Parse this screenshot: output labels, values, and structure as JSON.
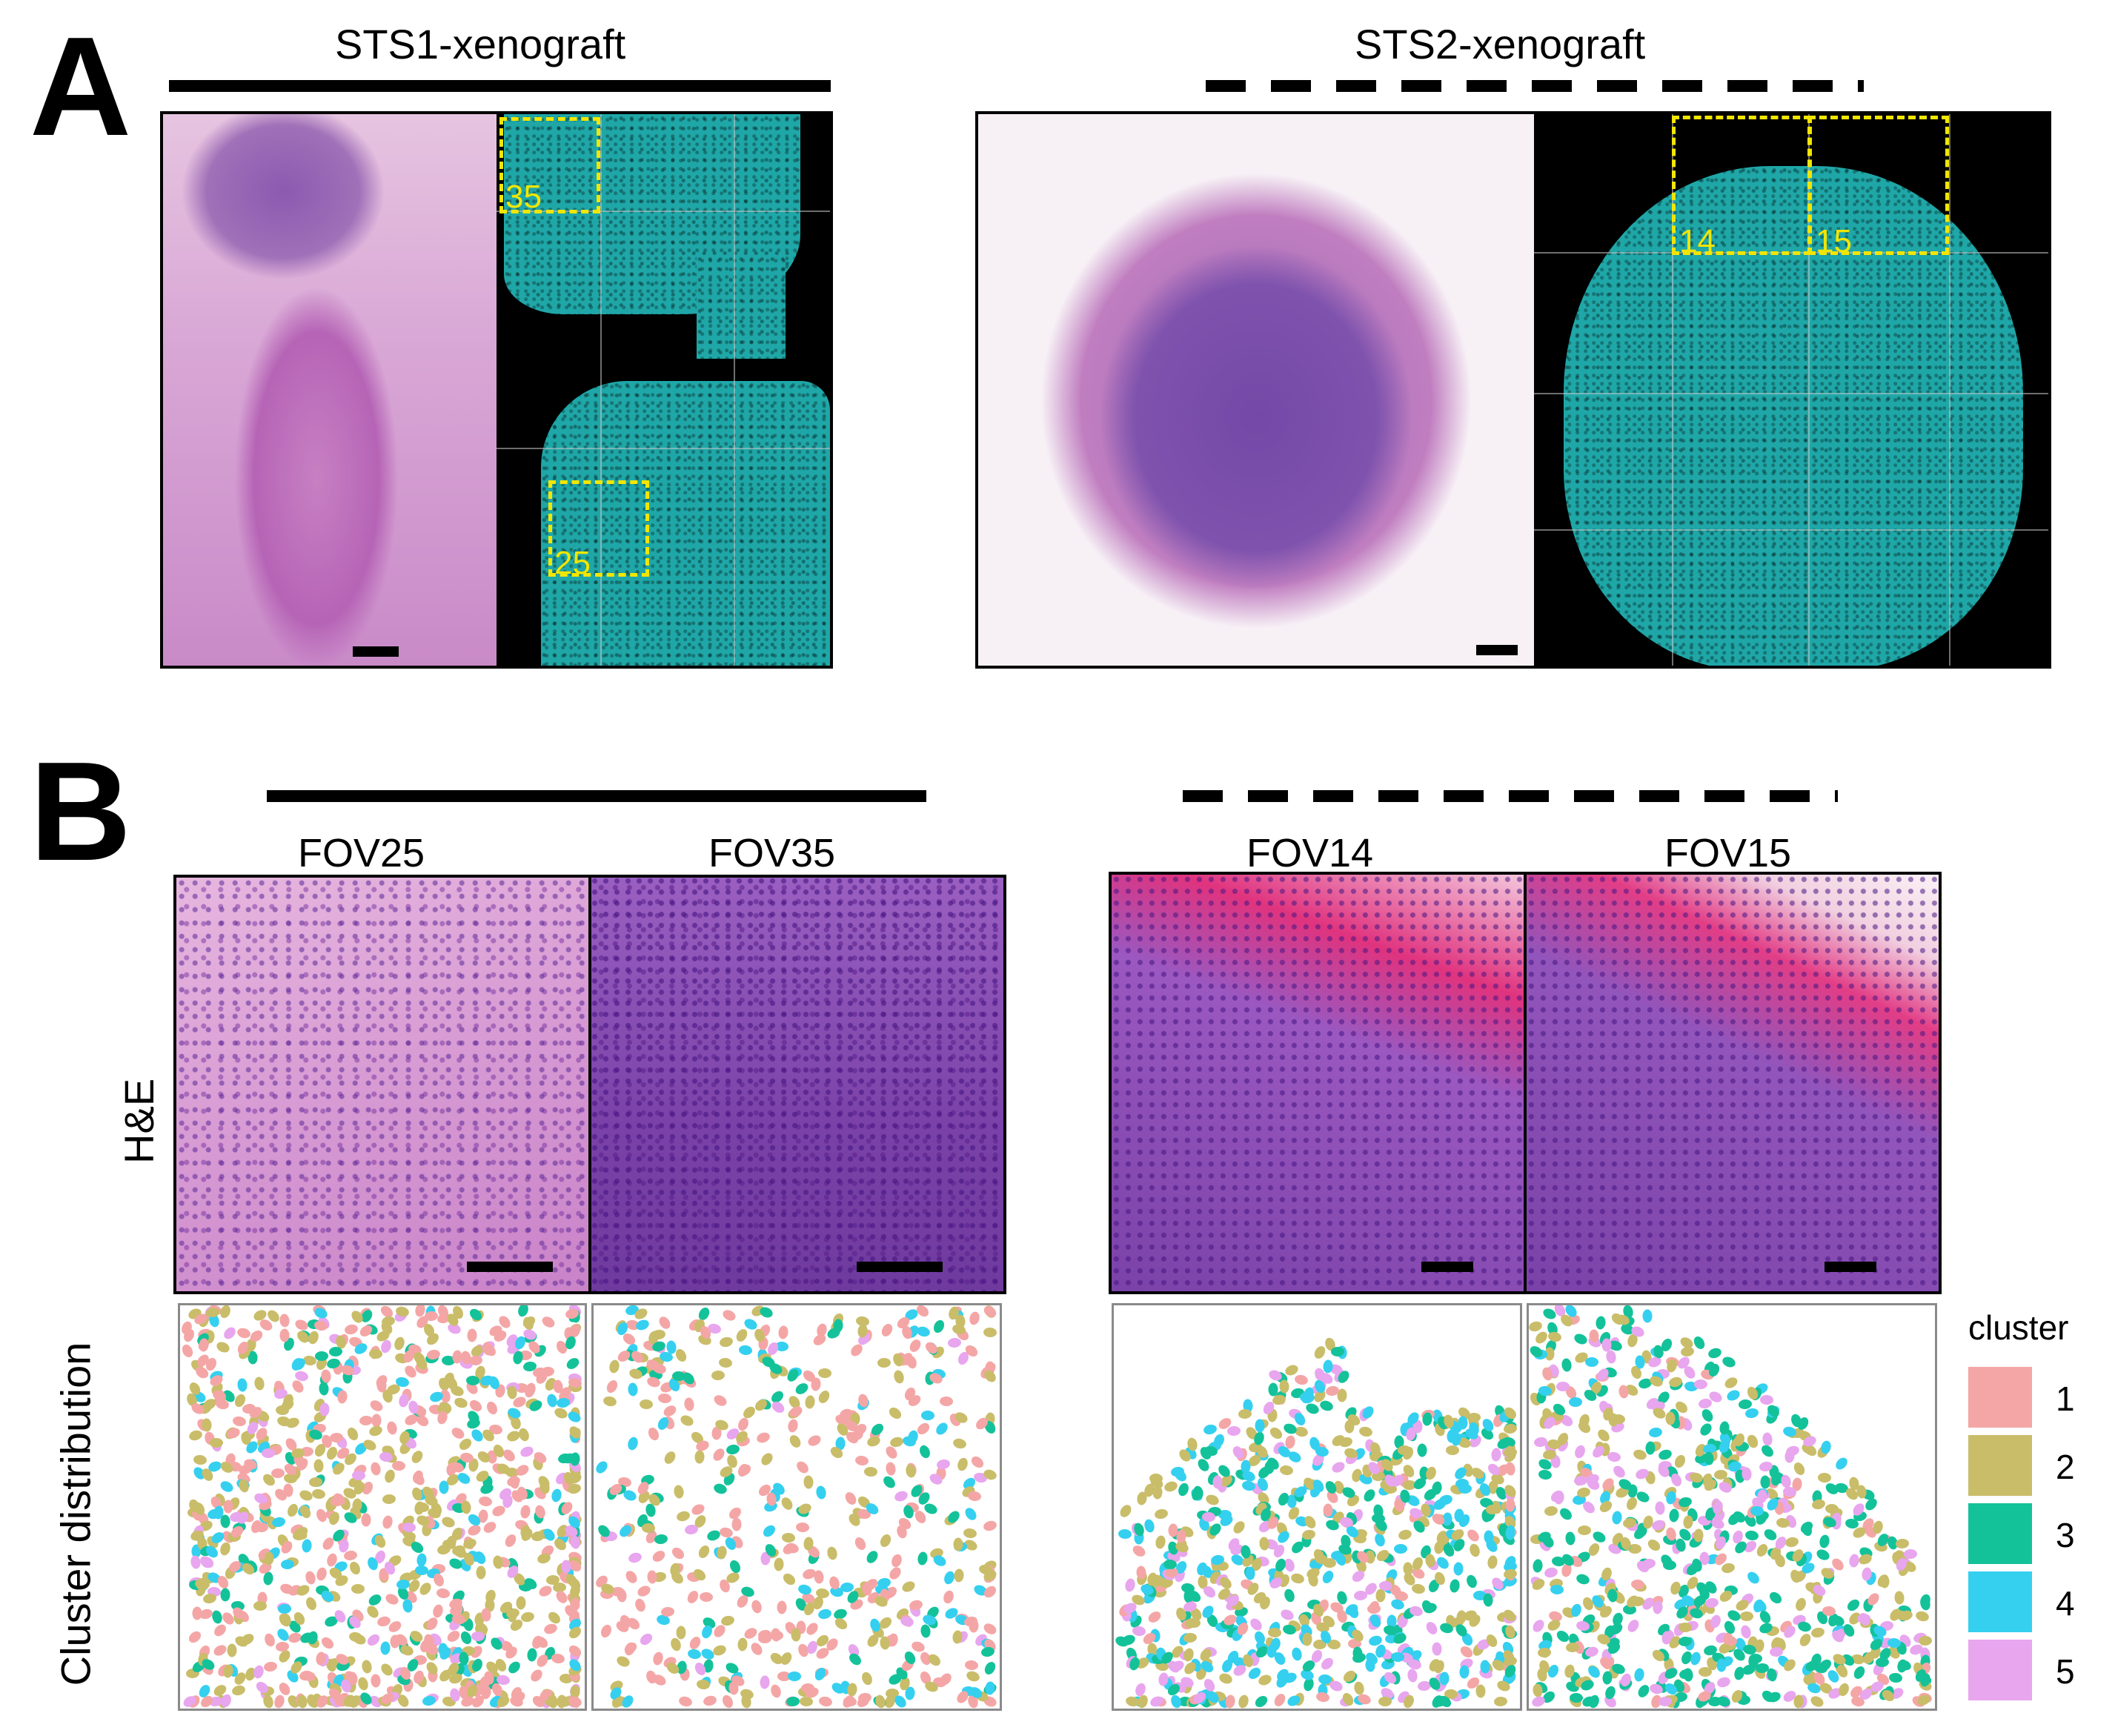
{
  "panel_a": {
    "letter": "A",
    "left_title": "STS1-xenograft",
    "right_title": "STS2-xenograft",
    "left_fov_labels": [
      "35",
      "25"
    ],
    "right_fov_labels": [
      "14",
      "15"
    ]
  },
  "panel_b": {
    "letter": "B",
    "fov_titles": [
      "FOV25",
      "FOV35",
      "FOV14",
      "FOV15"
    ],
    "row_labels": {
      "he": "H&E",
      "cluster": "Cluster distribution"
    }
  },
  "legend": {
    "title": "cluster",
    "items": [
      {
        "label": "1",
        "color": "#f4a6a6"
      },
      {
        "label": "2",
        "color": "#c9bd6a"
      },
      {
        "label": "3",
        "color": "#14c29a"
      },
      {
        "label": "4",
        "color": "#35d0ef"
      },
      {
        "label": "5",
        "color": "#e8a6ee"
      }
    ]
  }
}
